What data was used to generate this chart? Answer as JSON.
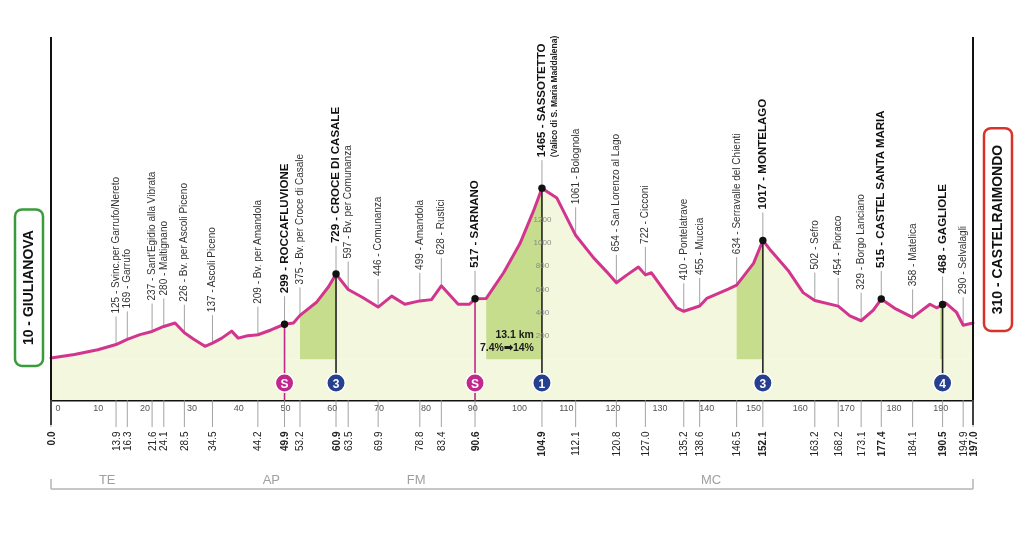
{
  "chart_data": {
    "type": "area",
    "grid": false,
    "xlim": [
      0,
      197
    ],
    "xticks": [
      0,
      10,
      20,
      30,
      40,
      50,
      60,
      70,
      80,
      90,
      100,
      110,
      120,
      130,
      140,
      150,
      160,
      170,
      180,
      190
    ],
    "ylim": [
      -350,
      2760
    ],
    "yticks": [
      200,
      400,
      600,
      800,
      1000,
      1200
    ],
    "x2lim": [
      0,
      197
    ],
    "x2ticks": [
      {
        "value": 0,
        "label": "0.0"
      },
      13.9,
      16.3,
      21.6,
      24.1,
      28.5,
      34.5,
      44.2,
      49.9,
      53.2,
      60.9,
      63.5,
      69.9,
      78.8,
      83.4,
      90.6,
      104.9,
      112.1,
      120.8,
      {
        "value": 127,
        "label": "127.0"
      },
      135.2,
      138.6,
      146.5,
      152.1,
      163.2,
      168.2,
      173.1,
      177.4,
      184.1,
      190.5,
      194.9,
      {
        "value": 197,
        "label": "197.0"
      }
    ],
    "x": [
      0,
      5,
      10,
      13.9,
      16.3,
      19,
      21.6,
      24.1,
      26.5,
      28.5,
      30.5,
      32.9,
      34.5,
      36.5,
      38.6,
      40,
      42,
      44.2,
      47,
      49.9,
      51.8,
      53.2,
      56.8,
      59.3,
      60.9,
      63.5,
      66.5,
      69.9,
      72.8,
      75.6,
      78.8,
      81.3,
      83.4,
      87,
      89.4,
      90.6,
      93,
      96.7,
      100.2,
      103.1,
      104.9,
      108.1,
      112.1,
      115.9,
      118.7,
      120.8,
      123,
      125.5,
      127,
      128.3,
      130.8,
      133.7,
      135.2,
      138.6,
      140.1,
      144.7,
      146.5,
      150.1,
      152.1,
      153.6,
      157.5,
      160.7,
      163.2,
      168.2,
      170.7,
      173.1,
      175.7,
      177.4,
      180.5,
      184.1,
      187.8,
      189.2,
      190,
      190.5,
      191.2,
      193.5,
      194.9,
      197
    ],
    "series": [
      {
        "color": "#d2358e",
        "line_style": "solid",
        "values": [
          10,
          40,
          80,
          125,
          169,
          210,
          237,
          280,
          310,
          226,
          170,
          110,
          137,
          180,
          240,
          180,
          200,
          209,
          250,
          299,
          310,
          375,
          490,
          620,
          729,
          597,
          530,
          446,
          540,
          470,
          499,
          510,
          628,
          470,
          470,
          517,
          520,
          740,
          990,
          1270,
          1465,
          1380,
          1061,
          870,
          750,
          654,
          720,
          790,
          722,
          740,
          600,
          440,
          410,
          455,
          520,
          600,
          634,
          820,
          1017,
          940,
          760,
          570,
          502,
          454,
          370,
          329,
          420,
          515,
          430,
          358,
          470,
          440,
          455,
          468,
          480,
          400,
          290,
          310
        ]
      },
      {
        "type": "area",
        "color": "#c6dd8e",
        "x": [
          53.2,
          56.8,
          59.3,
          60.9
        ],
        "values": [
          375,
          490,
          620,
          729
        ]
      },
      {
        "type": "area",
        "color": "#c6dd8e",
        "name": "13.1 km\n7.4%➡14%",
        "x": [
          93,
          96.7,
          100.2,
          103.1,
          104.9
        ],
        "values": [
          520,
          740,
          990,
          1270,
          1465
        ]
      },
      {
        "type": "area",
        "color": "#c6dd8e",
        "x": [
          146.5,
          150.1,
          152.1
        ],
        "values": [
          634,
          820,
          1017
        ]
      },
      {
        "type": "area",
        "color": "#c6dd8e",
        "x": [
          190,
          190.5
        ],
        "values": [
          455,
          468
        ]
      },
      {
        "type": "scatter",
        "color": "#111111",
        "marker": "circle",
        "x": [
          49.9,
          60.9,
          90.6,
          104.9,
          152.1,
          177.4,
          190.5
        ],
        "values": [
          299,
          729,
          517,
          1465,
          1017,
          515,
          468
        ]
      }
    ],
    "bands": [
      {
        "axis": "y",
        "from": -350,
        "to": 0,
        "color": "#f3f7de"
      }
    ],
    "ref_lines": [
      {
        "axis": "x",
        "value": 0,
        "color": "#111111"
      },
      {
        "axis": "x",
        "value": 197,
        "color": "#111111"
      },
      {
        "axis": "x",
        "value": 49.9,
        "label": "S",
        "color": "#c0288c"
      },
      {
        "axis": "x",
        "value": 90.6,
        "label": "S",
        "color": "#c0288c"
      }
    ],
    "annotations": [
      {
        "text": "10 - GIULIANOVA",
        "x": 0,
        "y": 10
      },
      {
        "text": "310 - CASTELRAIMONDO",
        "x": 197,
        "y": 310
      },
      {
        "text": "125 - Svinc.per Garrufo/Nereto",
        "x": 13.9,
        "y": 125
      },
      {
        "text": "169 - Garrufo",
        "x": 16.3,
        "y": 169
      },
      {
        "text": "237 - Sant’Egidio alla Vibrata",
        "x": 21.6,
        "y": 237
      },
      {
        "text": "280 - Maltignano",
        "x": 24.1,
        "y": 280
      },
      {
        "text": "226 - Bv. per Ascoli Piceno",
        "x": 28.5,
        "y": 226
      },
      {
        "text": "137 - Ascoli Piceno",
        "x": 34.5,
        "y": 137
      },
      {
        "text": "209 - Bv. per Amandola",
        "x": 44.2,
        "y": 209
      },
      {
        "text": "299 - ROCCAFLUVIONE",
        "x": 49.9,
        "y": 299
      },
      {
        "text": "375 - Bv. per Croce di Casale",
        "x": 53.2,
        "y": 375
      },
      {
        "text": "729 - CROCE DI CASALE",
        "x": 60.9,
        "y": 729
      },
      {
        "text": "597 - Bv. per Comunanza",
        "x": 63.5,
        "y": 597
      },
      {
        "text": "446 - Comunanza",
        "x": 69.9,
        "y": 446
      },
      {
        "text": "499 - Amandola",
        "x": 78.8,
        "y": 499
      },
      {
        "text": "628 - Rustici",
        "x": 83.4,
        "y": 628
      },
      {
        "text": "517 - SARNANO",
        "x": 90.6,
        "y": 517
      },
      {
        "text": "1465 - SASSOTETTO",
        "x": 104.9,
        "y": 1465
      },
      {
        "text": "(Valico di S. Maria Maddalena)",
        "x": 104.9,
        "y": 1465
      },
      {
        "text": "1061 - Bolognola",
        "x": 112.1,
        "y": 1061
      },
      {
        "text": "654 - San Lorenzo al Lago",
        "x": 120.8,
        "y": 654
      },
      {
        "text": "722 - Cicconi",
        "x": 127,
        "y": 722
      },
      {
        "text": "410 - Pontelatrave",
        "x": 135.2,
        "y": 410
      },
      {
        "text": "455 - Muccia",
        "x": 138.6,
        "y": 455
      },
      {
        "text": "634 - Serravalle del Chienti",
        "x": 146.5,
        "y": 634
      },
      {
        "text": "1017 - MONTELAGO",
        "x": 152.1,
        "y": 1017
      },
      {
        "text": "502 - Sefro",
        "x": 163.2,
        "y": 502
      },
      {
        "text": "454 - Pioraco",
        "x": 168.2,
        "y": 454
      },
      {
        "text": "329 - Borgo Lanciano",
        "x": 173.1,
        "y": 329
      },
      {
        "text": "515 - CASTEL SANTA MARIA",
        "x": 177.4,
        "y": 515
      },
      {
        "text": "358 - Matelica",
        "x": 184.1,
        "y": 358
      },
      {
        "text": "468 - GAGLIOLE",
        "x": 190.5,
        "y": 468
      },
      {
        "text": "290 - Selvalagli",
        "x": 194.9,
        "y": 290
      },
      {
        "text": "3",
        "x": 60.9
      },
      {
        "text": "1",
        "x": 104.9
      },
      {
        "text": "3",
        "x": 152.1
      },
      {
        "text": "4",
        "x": 190.5
      },
      "TE",
      "AP",
      "FM",
      "MC"
    ]
  }
}
